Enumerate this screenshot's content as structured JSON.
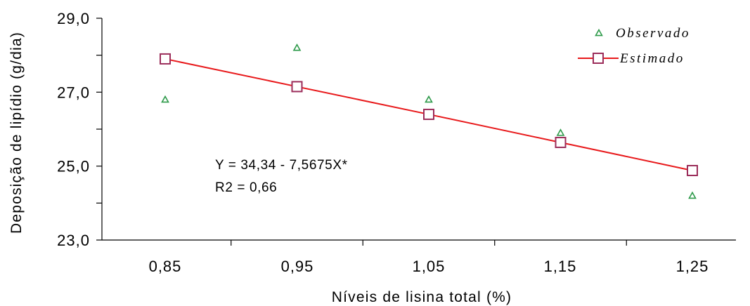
{
  "chart_data": {
    "type": "scatter",
    "xlabel": "Níveis de lisina total (%)",
    "ylabel": "Deposição de lipídio (g/dia)",
    "x_tick_labels": [
      "0,85",
      "0,95",
      "1,05",
      "1,15",
      "1,25"
    ],
    "y_tick_labels": [
      "23,0",
      "25,0",
      "27,0",
      "29,0"
    ],
    "x_categories": [
      0.85,
      0.95,
      1.05,
      1.15,
      1.25
    ],
    "ylim": [
      23.0,
      29.0
    ],
    "y_major_ticks": [
      23.0,
      25.0,
      27.0,
      29.0
    ],
    "y_minor_ticks": [
      24.0,
      26.0,
      28.0
    ],
    "grid": false,
    "legend_position": "top-right",
    "series": [
      {
        "name": "Observado",
        "marker": "triangle",
        "color": "#2e9a4a",
        "x": [
          0.85,
          0.95,
          1.05,
          1.15,
          1.25
        ],
        "y": [
          26.8,
          28.2,
          26.8,
          25.9,
          24.2
        ]
      },
      {
        "name": "Estimado",
        "marker": "square",
        "line_color": "#e8191b",
        "marker_color": "#9b2d5a",
        "x": [
          0.85,
          0.95,
          1.05,
          1.15,
          1.25
        ],
        "y": [
          27.9,
          27.15,
          26.4,
          25.64,
          24.88
        ]
      }
    ],
    "annotations": [
      "Y = 34,34 - 7,5675X*",
      "R2 = 0,66"
    ]
  }
}
